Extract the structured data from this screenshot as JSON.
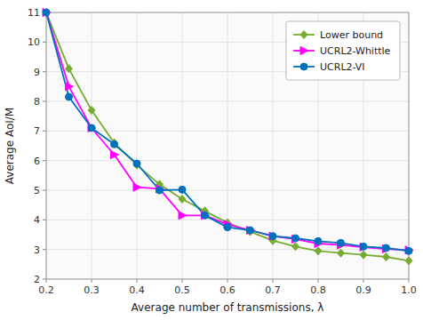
{
  "chart_data": {
    "type": "line",
    "xlabel": "Average number of transmissions, λ",
    "ylabel": "Average AoI/M",
    "x": [
      0.2,
      0.25,
      0.3,
      0.35,
      0.4,
      0.45,
      0.5,
      0.55,
      0.6,
      0.65,
      0.7,
      0.75,
      0.8,
      0.85,
      0.9,
      0.95,
      1.0
    ],
    "series": [
      {
        "name": "Lower bound",
        "color": "#77ac30",
        "marker": "diamond",
        "values": [
          11.0,
          9.1,
          7.7,
          6.6,
          5.85,
          5.2,
          4.7,
          4.3,
          3.9,
          3.6,
          3.3,
          3.1,
          2.95,
          2.88,
          2.82,
          2.75,
          2.62
        ]
      },
      {
        "name": "UCRL2-Whittle",
        "color": "#ff00ff",
        "marker": "triangle-right",
        "values": [
          11.0,
          8.5,
          7.1,
          6.2,
          5.1,
          5.05,
          4.15,
          4.15,
          3.85,
          3.65,
          3.45,
          3.35,
          3.2,
          3.15,
          3.08,
          3.02,
          2.98
        ]
      },
      {
        "name": "UCRL2-VI",
        "color": "#0072bd",
        "marker": "circle",
        "values": [
          11.0,
          8.15,
          7.1,
          6.55,
          5.9,
          5.0,
          5.02,
          4.15,
          3.75,
          3.65,
          3.45,
          3.38,
          3.28,
          3.22,
          3.1,
          3.05,
          2.95
        ]
      }
    ],
    "xlim": [
      0.2,
      1.0
    ],
    "ylim": [
      2,
      11
    ],
    "xticks": [
      0.2,
      0.3,
      0.4,
      0.5,
      0.6,
      0.7,
      0.8,
      0.9,
      {
        "value": 1.0,
        "label": "1.0"
      }
    ],
    "yticks": [
      2,
      3,
      4,
      5,
      6,
      7,
      8,
      9,
      10,
      11
    ],
    "grid": true,
    "legend": "upper right"
  }
}
